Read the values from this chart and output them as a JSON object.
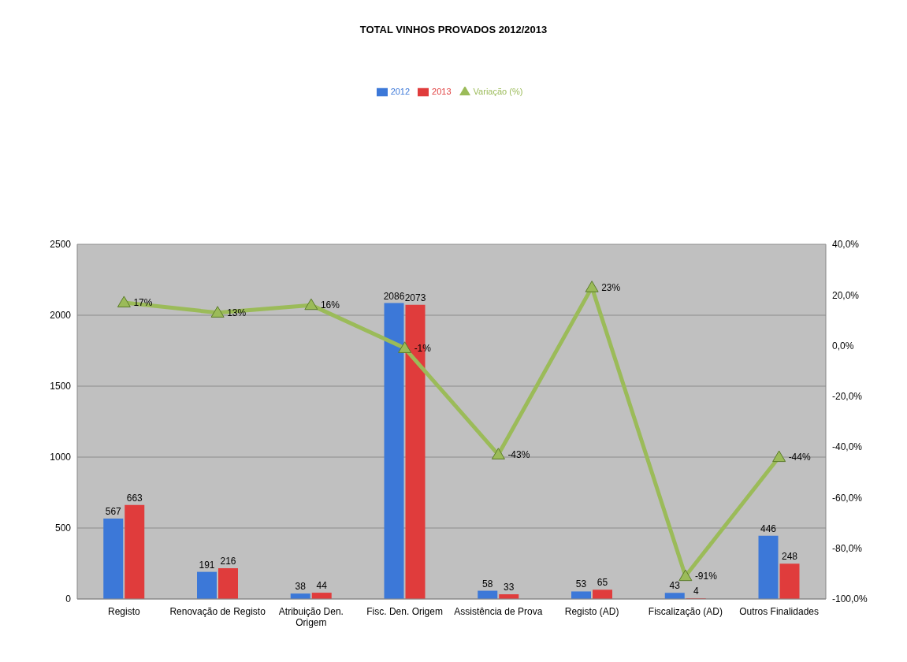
{
  "chart_data": {
    "type": "bar",
    "title": "TOTAL VINHOS PROVADOS 2012/2013",
    "categories": [
      "Registo",
      "Renovação de Registo",
      "Atribuição Den. Origem",
      "Fisc. Den. Origem",
      "Assistência de Prova",
      "Registo (AD)",
      "Fiscalização (AD)",
      "Outros Finalidades"
    ],
    "series": [
      {
        "name": "2012",
        "color": "#3c78d8",
        "values": [
          567,
          191,
          38,
          2086,
          58,
          53,
          43,
          446
        ]
      },
      {
        "name": "2013",
        "color": "#e03c3c",
        "values": [
          663,
          216,
          44,
          2073,
          33,
          65,
          4,
          248
        ]
      },
      {
        "name": "Variação (%)",
        "type": "line",
        "axis": "y2",
        "color": "#9bbb59",
        "marker": "triangle",
        "line_style": "solid",
        "values": [
          17,
          13,
          16,
          -1,
          -43,
          23,
          -91,
          -44
        ],
        "value_labels": [
          "17%",
          "13%",
          "16%",
          "-1%",
          "-43%",
          "23%",
          "-91%",
          "-44%"
        ]
      }
    ],
    "ylim": [
      0,
      2500
    ],
    "yticks": [
      0,
      500,
      1000,
      1500,
      2000,
      2500
    ],
    "y2lim": [
      -100,
      40
    ],
    "y2ticks": [
      {
        "value": -100,
        "label": "-100,0%"
      },
      {
        "value": -80,
        "label": "-80,0%"
      },
      {
        "value": -60,
        "label": "-60,0%"
      },
      {
        "value": -40,
        "label": "-40,0%"
      },
      {
        "value": -20,
        "label": "-20,0%"
      },
      {
        "value": 0,
        "label": "0,0%"
      },
      {
        "value": 20,
        "label": "20,0%"
      },
      {
        "value": 40,
        "label": "40,0%"
      }
    ],
    "data_labels": true,
    "grid": "y",
    "legend": "top"
  }
}
